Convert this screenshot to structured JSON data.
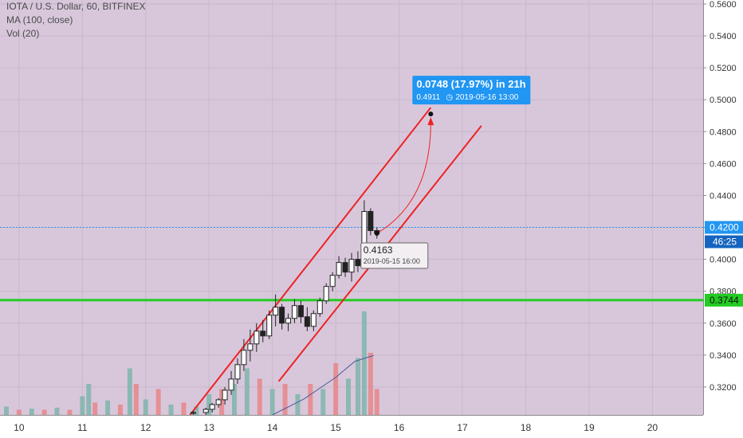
{
  "chart_data": {
    "type": "candlestick",
    "symbol_line": "IOTA / U.S. Dollar, 60, BITFINEX",
    "indicators": [
      "MA (100, close)",
      "Vol (20)"
    ],
    "x_axis": {
      "ticks": [
        "10",
        "11",
        "12",
        "13",
        "14",
        "15",
        "16",
        "17",
        "18",
        "19",
        "20"
      ],
      "range_days": [
        9.7,
        20.8
      ]
    },
    "y_axis": {
      "ticks": [
        "0.5600",
        "0.5400",
        "0.5200",
        "0.5000",
        "0.4800",
        "0.4600",
        "0.4400",
        "0.4200",
        "0.4000",
        "0.3800",
        "0.3600",
        "0.3400",
        "0.3200"
      ],
      "range": [
        0.3025,
        0.5625
      ]
    },
    "last_price": {
      "value": 0.42,
      "label": "0.4200",
      "countdown": "46:25",
      "color": "#2196f3"
    },
    "horizontal_line": {
      "value": 0.3744,
      "label": "0.3744",
      "color": "#22cc22"
    },
    "channel": {
      "color": "#ee2222",
      "upper": {
        "from": [
          12.7,
          0.3025
        ],
        "to": [
          16.5,
          0.4951
        ]
      },
      "lower": {
        "from": [
          14.1,
          0.3235
        ],
        "to": [
          17.3,
          0.4837
        ]
      }
    },
    "projection": {
      "from": {
        "x": 15.65,
        "price": 0.4163,
        "label": "0.4163",
        "date": "2019-05-15 16:00"
      },
      "to": {
        "x": 16.5,
        "price": 0.4911,
        "label": "0.4911",
        "date": "2019-05-16  13:00"
      },
      "change_text": "0.0748 (17.97%) in 21h"
    },
    "candles": [
      {
        "x": 12.75,
        "o": 0.3035,
        "h": 0.305,
        "l": 0.301,
        "c": 0.304
      },
      {
        "x": 12.95,
        "o": 0.304,
        "h": 0.307,
        "l": 0.302,
        "c": 0.306
      },
      {
        "x": 13.05,
        "o": 0.306,
        "h": 0.31,
        "l": 0.304,
        "c": 0.309
      },
      {
        "x": 13.15,
        "o": 0.309,
        "h": 0.313,
        "l": 0.307,
        "c": 0.312
      },
      {
        "x": 13.25,
        "o": 0.312,
        "h": 0.32,
        "l": 0.309,
        "c": 0.318
      },
      {
        "x": 13.35,
        "o": 0.318,
        "h": 0.33,
        "l": 0.315,
        "c": 0.325
      },
      {
        "x": 13.45,
        "o": 0.325,
        "h": 0.338,
        "l": 0.322,
        "c": 0.334
      },
      {
        "x": 13.55,
        "o": 0.334,
        "h": 0.35,
        "l": 0.33,
        "c": 0.343
      },
      {
        "x": 13.65,
        "o": 0.343,
        "h": 0.356,
        "l": 0.336,
        "c": 0.347
      },
      {
        "x": 13.75,
        "o": 0.347,
        "h": 0.36,
        "l": 0.342,
        "c": 0.355
      },
      {
        "x": 13.85,
        "o": 0.355,
        "h": 0.362,
        "l": 0.348,
        "c": 0.352
      },
      {
        "x": 13.95,
        "o": 0.352,
        "h": 0.368,
        "l": 0.35,
        "c": 0.365
      },
      {
        "x": 14.05,
        "o": 0.365,
        "h": 0.378,
        "l": 0.358,
        "c": 0.37
      },
      {
        "x": 14.15,
        "o": 0.37,
        "h": 0.372,
        "l": 0.356,
        "c": 0.36
      },
      {
        "x": 14.25,
        "o": 0.36,
        "h": 0.366,
        "l": 0.355,
        "c": 0.363
      },
      {
        "x": 14.35,
        "o": 0.363,
        "h": 0.375,
        "l": 0.36,
        "c": 0.371
      },
      {
        "x": 14.45,
        "o": 0.371,
        "h": 0.374,
        "l": 0.36,
        "c": 0.364
      },
      {
        "x": 14.55,
        "o": 0.364,
        "h": 0.37,
        "l": 0.355,
        "c": 0.358
      },
      {
        "x": 14.65,
        "o": 0.358,
        "h": 0.368,
        "l": 0.355,
        "c": 0.366
      },
      {
        "x": 14.75,
        "o": 0.366,
        "h": 0.376,
        "l": 0.364,
        "c": 0.374
      },
      {
        "x": 14.85,
        "o": 0.374,
        "h": 0.385,
        "l": 0.372,
        "c": 0.383
      },
      {
        "x": 14.95,
        "o": 0.383,
        "h": 0.392,
        "l": 0.38,
        "c": 0.39
      },
      {
        "x": 15.05,
        "o": 0.39,
        "h": 0.402,
        "l": 0.388,
        "c": 0.398
      },
      {
        "x": 15.15,
        "o": 0.398,
        "h": 0.401,
        "l": 0.389,
        "c": 0.392
      },
      {
        "x": 15.25,
        "o": 0.392,
        "h": 0.404,
        "l": 0.386,
        "c": 0.4
      },
      {
        "x": 15.35,
        "o": 0.4,
        "h": 0.405,
        "l": 0.392,
        "c": 0.396
      },
      {
        "x": 15.45,
        "o": 0.396,
        "h": 0.437,
        "l": 0.395,
        "c": 0.43
      },
      {
        "x": 15.55,
        "o": 0.43,
        "h": 0.432,
        "l": 0.415,
        "c": 0.418
      },
      {
        "x": 15.65,
        "o": 0.418,
        "h": 0.42,
        "l": 0.413,
        "c": 0.4163
      }
    ],
    "volume": [
      {
        "x": 9.8,
        "v": 0.08,
        "up": true
      },
      {
        "x": 10.0,
        "v": 0.05,
        "up": false
      },
      {
        "x": 10.2,
        "v": 0.06,
        "up": true
      },
      {
        "x": 10.4,
        "v": 0.05,
        "up": false
      },
      {
        "x": 10.6,
        "v": 0.07,
        "up": true
      },
      {
        "x": 10.8,
        "v": 0.05,
        "up": false
      },
      {
        "x": 11.0,
        "v": 0.18,
        "up": true
      },
      {
        "x": 11.1,
        "v": 0.3,
        "up": true
      },
      {
        "x": 11.2,
        "v": 0.12,
        "up": false
      },
      {
        "x": 11.4,
        "v": 0.14,
        "up": true
      },
      {
        "x": 11.6,
        "v": 0.1,
        "up": false
      },
      {
        "x": 11.75,
        "v": 0.45,
        "up": true
      },
      {
        "x": 11.85,
        "v": 0.3,
        "up": false
      },
      {
        "x": 12.0,
        "v": 0.15,
        "up": true
      },
      {
        "x": 12.2,
        "v": 0.25,
        "up": false
      },
      {
        "x": 12.4,
        "v": 0.1,
        "up": true
      },
      {
        "x": 12.6,
        "v": 0.12,
        "up": false
      },
      {
        "x": 12.8,
        "v": 0.08,
        "up": true
      },
      {
        "x": 13.0,
        "v": 0.2,
        "up": true
      },
      {
        "x": 13.2,
        "v": 0.25,
        "up": false
      },
      {
        "x": 13.4,
        "v": 0.3,
        "up": true
      },
      {
        "x": 13.6,
        "v": 0.45,
        "up": true
      },
      {
        "x": 13.8,
        "v": 0.35,
        "up": false
      },
      {
        "x": 14.0,
        "v": 0.25,
        "up": true
      },
      {
        "x": 14.2,
        "v": 0.3,
        "up": false
      },
      {
        "x": 14.4,
        "v": 0.2,
        "up": true
      },
      {
        "x": 14.6,
        "v": 0.3,
        "up": false
      },
      {
        "x": 14.8,
        "v": 0.25,
        "up": true
      },
      {
        "x": 15.0,
        "v": 0.5,
        "up": false
      },
      {
        "x": 15.2,
        "v": 0.35,
        "up": true
      },
      {
        "x": 15.35,
        "v": 0.55,
        "up": true
      },
      {
        "x": 15.45,
        "v": 1.0,
        "up": true
      },
      {
        "x": 15.55,
        "v": 0.6,
        "up": false
      },
      {
        "x": 15.65,
        "v": 0.25,
        "up": false
      }
    ],
    "ma_line": [
      [
        14.0,
        0.3025
      ],
      [
        14.5,
        0.3125
      ],
      [
        15.0,
        0.326
      ],
      [
        15.3,
        0.336
      ],
      [
        15.6,
        0.3398
      ]
    ]
  }
}
